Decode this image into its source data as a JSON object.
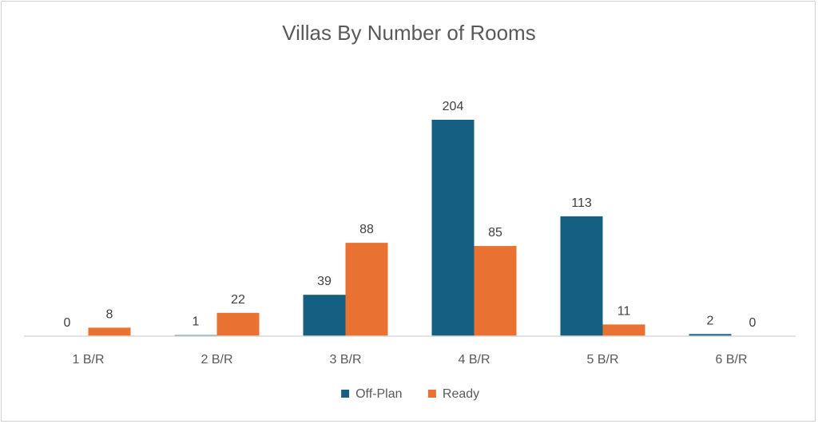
{
  "chart_data": {
    "type": "bar",
    "title": "Villas By Number of Rooms",
    "xlabel": "",
    "ylabel": "",
    "categories": [
      "1 B/R",
      "2 B/R",
      "3 B/R",
      "4 B/R",
      "5 B/R",
      "6 B/R"
    ],
    "series": [
      {
        "name": "Off-Plan",
        "color": "#156082",
        "values": [
          0,
          1,
          39,
          204,
          113,
          2
        ]
      },
      {
        "name": "Ready",
        "color": "#E97132",
        "values": [
          8,
          22,
          88,
          85,
          11,
          0
        ]
      }
    ],
    "ylim": [
      0,
      204
    ],
    "grid": false,
    "legend": "bottom",
    "data_labels": true
  }
}
